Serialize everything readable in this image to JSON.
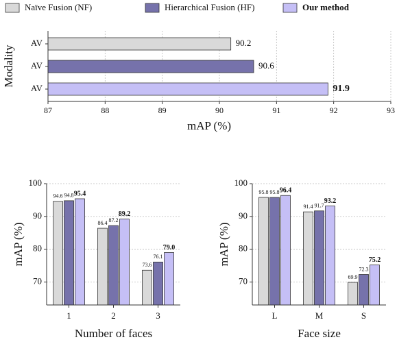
{
  "legend": [
    {
      "name": "Naïve Fusion (NF)",
      "color": "#d9d9d9"
    },
    {
      "name": "Hierarchical Fusion (HF)",
      "color": "#7672ab"
    },
    {
      "name": "Our method",
      "color": "#c5bff6"
    }
  ],
  "chart_data": [
    {
      "type": "barh",
      "ylabel": "Modality",
      "xlabel": "mAP (%)",
      "categories": [
        "AV",
        "AV",
        "AV"
      ],
      "values": [
        90.2,
        90.6,
        91.9
      ],
      "xlim": [
        87,
        93
      ],
      "xticks": [
        87,
        88,
        89,
        90,
        91,
        92,
        93
      ],
      "grid": true
    },
    {
      "type": "grouped-bar",
      "ylabel": "mAP (%)",
      "xlabel": "Number of faces",
      "categories": [
        "1",
        "2",
        "3"
      ],
      "series": [
        {
          "values": [
            94.6,
            86.4,
            73.6
          ]
        },
        {
          "values": [
            94.8,
            87.2,
            76.1
          ]
        },
        {
          "values": [
            95.4,
            89.2,
            79.0
          ],
          "value_labels": [
            "95.4",
            "89.2",
            "79.0"
          ]
        }
      ],
      "ylim": [
        63,
        100
      ],
      "yticks": [
        70,
        80,
        90,
        100
      ],
      "grid": true
    },
    {
      "type": "grouped-bar",
      "ylabel": "mAP (%)",
      "xlabel": "Face size",
      "categories": [
        "L",
        "M",
        "S"
      ],
      "series": [
        {
          "values": [
            95.8,
            91.4,
            69.9
          ]
        },
        {
          "values": [
            95.8,
            91.7,
            72.3
          ]
        },
        {
          "values": [
            96.4,
            93.2,
            75.2
          ]
        }
      ],
      "ylim": [
        63,
        100
      ],
      "yticks": [
        70,
        80,
        90,
        100
      ],
      "grid": true
    }
  ]
}
